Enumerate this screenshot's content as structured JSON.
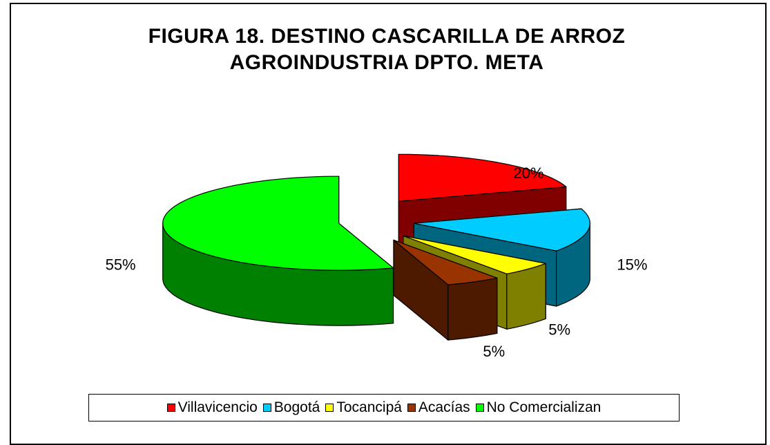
{
  "chart_data": {
    "type": "pie3d",
    "title": "FIGURA 18. DESTINO CASCARILLA DE ARROZ AGROINDUSTRIA DPTO. META",
    "categories": [
      "Villavicencio",
      "Bogotá",
      "Tocancipá",
      "Acacías",
      "No Comercializan"
    ],
    "values": [
      20,
      15,
      5,
      5,
      55
    ],
    "value_labels": [
      "20%",
      "15%",
      "5%",
      "5%",
      "55%"
    ],
    "colors": [
      "#ff0000",
      "#00ccff",
      "#ffff00",
      "#993300",
      "#00ff00"
    ],
    "legend": "bottom"
  }
}
